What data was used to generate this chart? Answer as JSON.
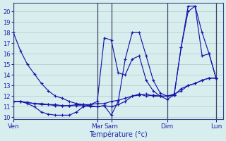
{
  "background_color": "#d8eeee",
  "grid_color": "#a8cccc",
  "line_color": "#1515aa",
  "xlabel": "Température (°c)",
  "ylim": [
    9.8,
    20.8
  ],
  "yticks": [
    10,
    11,
    12,
    13,
    14,
    15,
    16,
    17,
    18,
    19,
    20
  ],
  "xlim": [
    0,
    30
  ],
  "day_labels": [
    "Ven",
    "Mar",
    "Sam",
    "Dim",
    "Lun"
  ],
  "day_x": [
    0,
    12,
    14,
    22,
    29
  ],
  "series": [
    {
      "x": [
        0,
        1,
        2,
        3,
        4,
        5,
        6,
        7,
        8,
        9,
        10,
        11,
        12,
        13,
        14,
        15,
        16,
        17,
        18,
        19,
        20,
        21,
        22,
        23,
        24,
        25,
        26,
        27,
        28,
        29
      ],
      "y": [
        18.0,
        16.3,
        15.0,
        14.1,
        13.2,
        12.5,
        12.0,
        11.8,
        11.5,
        11.3,
        11.2,
        11.1,
        11.0,
        11.1,
        10.2,
        11.5,
        15.5,
        18.0,
        18.0,
        15.8,
        13.5,
        12.3,
        12.0,
        12.1,
        16.6,
        20.0,
        20.5,
        18.0,
        16.0,
        13.7
      ]
    },
    {
      "x": [
        0,
        1,
        2,
        3,
        4,
        5,
        6,
        7,
        8,
        9,
        10,
        11,
        12,
        13,
        14,
        15,
        16,
        17,
        18,
        19,
        20,
        21,
        22,
        23,
        24,
        25,
        26,
        27,
        28,
        29
      ],
      "y": [
        11.5,
        11.5,
        11.3,
        11.0,
        10.5,
        10.3,
        10.2,
        10.2,
        10.2,
        10.5,
        11.0,
        11.2,
        11.5,
        17.5,
        17.3,
        14.2,
        14.0,
        15.5,
        15.8,
        13.5,
        12.5,
        12.0,
        11.7,
        12.1,
        16.6,
        20.5,
        20.5,
        15.8,
        16.0,
        13.7
      ]
    },
    {
      "x": [
        0,
        1,
        2,
        3,
        4,
        5,
        6,
        7,
        8,
        9,
        10,
        11,
        12,
        13,
        14,
        15,
        16,
        17,
        18,
        19,
        20,
        21,
        22,
        23,
        24,
        25,
        26,
        27,
        28,
        29
      ],
      "y": [
        11.5,
        11.5,
        11.4,
        11.3,
        11.2,
        11.2,
        11.1,
        11.1,
        11.1,
        11.2,
        11.2,
        11.2,
        11.3,
        11.3,
        11.5,
        11.6,
        11.8,
        12.0,
        12.1,
        12.2,
        12.0,
        12.0,
        12.0,
        12.2,
        12.5,
        13.0,
        13.2,
        13.5,
        13.7,
        13.7
      ]
    },
    {
      "x": [
        0,
        1,
        2,
        3,
        4,
        5,
        6,
        7,
        8,
        9,
        10,
        11,
        12,
        13,
        14,
        15,
        16,
        17,
        18,
        19,
        20,
        21,
        22,
        23,
        24,
        25,
        26,
        27,
        28,
        29
      ],
      "y": [
        11.5,
        11.5,
        11.4,
        11.3,
        11.3,
        11.2,
        11.2,
        11.1,
        11.1,
        11.1,
        11.1,
        11.0,
        11.0,
        11.1,
        11.0,
        11.2,
        11.5,
        12.0,
        12.2,
        12.0,
        12.1,
        12.0,
        12.0,
        12.1,
        12.7,
        13.0,
        13.2,
        13.5,
        13.7,
        13.7
      ]
    }
  ]
}
